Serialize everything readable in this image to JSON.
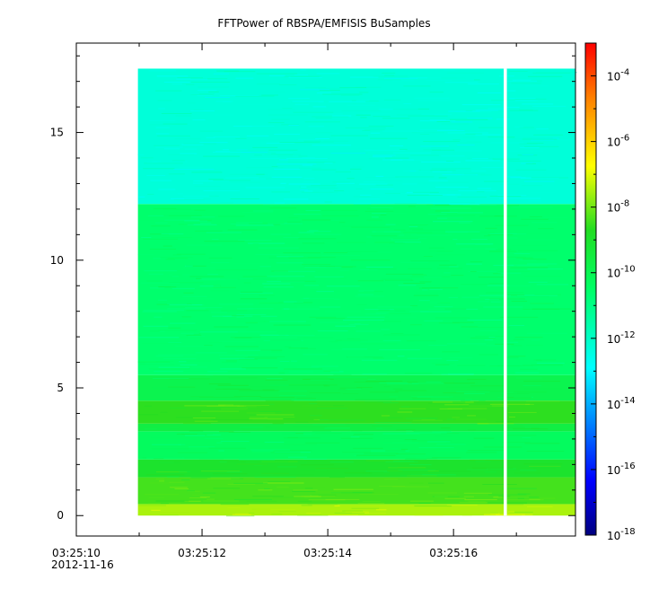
{
  "chart_data": {
    "type": "heatmap",
    "title": "FFTPower of RBSPA/EMFISIS  BuSamples",
    "xlabel": "",
    "ylabel": "",
    "x_axis": {
      "ticks": [
        "03:25:10",
        "03:25:12",
        "03:25:14",
        "03:25:16"
      ],
      "tick_seconds": [
        10,
        12,
        14,
        16
      ],
      "range_seconds": [
        10,
        17.94
      ],
      "minor_step_seconds": 1,
      "date_label": "2012-11-16"
    },
    "y_axis": {
      "ticks": [
        "0",
        "5",
        "10",
        "15"
      ],
      "tick_values": [
        0,
        5,
        10,
        15
      ],
      "range": [
        -0.8,
        18.5
      ]
    },
    "colorbar": {
      "scale": "log",
      "range": [
        1e-18,
        0.001
      ],
      "tick_exponents": [
        -18,
        -16,
        -14,
        -12,
        -10,
        -8,
        -6,
        -4
      ],
      "tick_base": "10"
    },
    "data_extent": {
      "x_start_seconds": 10.98,
      "x_end_seconds": 17.94,
      "y_min": 0,
      "y_max": 17.5,
      "gap_at_seconds": 16.82
    },
    "frequency_bands": [
      {
        "from": 0.0,
        "to": 0.45,
        "log10_power": -7.5
      },
      {
        "from": 0.45,
        "to": 1.5,
        "log10_power": -8.4
      },
      {
        "from": 1.5,
        "to": 2.2,
        "log10_power": -9.0
      },
      {
        "from": 2.2,
        "to": 3.3,
        "log10_power": -10.3
      },
      {
        "from": 3.3,
        "to": 3.6,
        "log10_power": -9.6
      },
      {
        "from": 3.6,
        "to": 4.5,
        "log10_power": -8.6
      },
      {
        "from": 4.5,
        "to": 5.5,
        "log10_power": -9.9
      },
      {
        "from": 5.5,
        "to": 12.2,
        "log10_power": -10.6
      },
      {
        "from": 12.2,
        "to": 17.5,
        "log10_power": -12.3
      }
    ]
  }
}
